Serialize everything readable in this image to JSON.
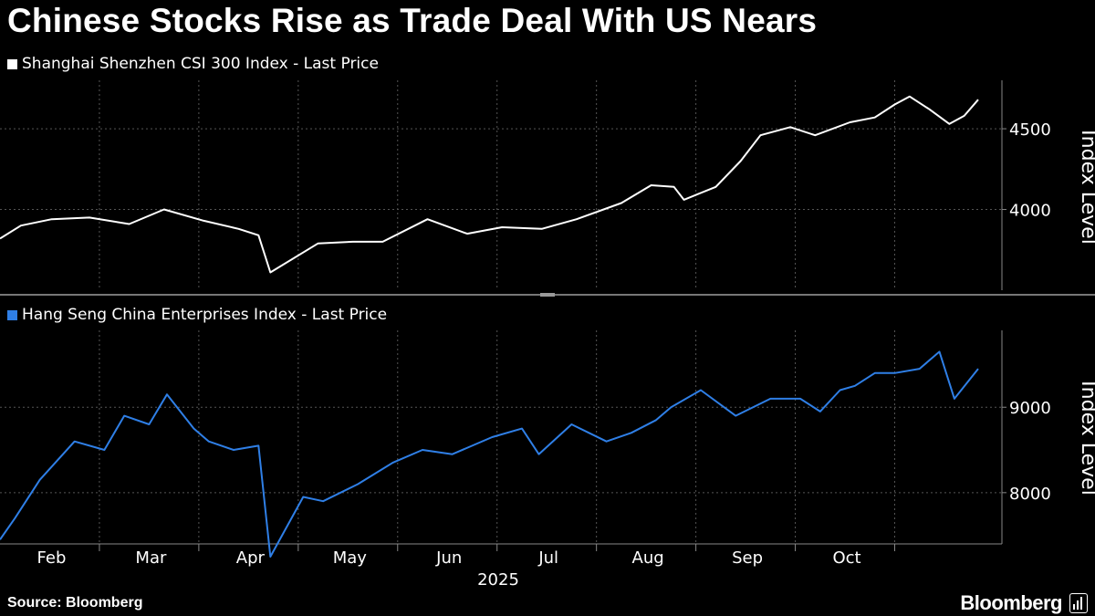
{
  "title": "Chinese Stocks Rise as Trade Deal With US Nears",
  "source": "Source: Bloomberg",
  "brand": "Bloomberg",
  "colors": {
    "background": "#000000",
    "series_top": "#ffffff",
    "series_bottom": "#2f7fe6",
    "grid": "#555555"
  },
  "chart_data": [
    {
      "type": "line",
      "legend": "Shanghai Shenzhen CSI 300 Index - Last Price",
      "ylabel": "Index Level",
      "ylim": [
        3500,
        4800
      ],
      "yticks": [
        4000,
        4500
      ],
      "ytick_labels": [
        "4000",
        "4500"
      ],
      "x_range_months": [
        0.0,
        9.84
      ],
      "x": [
        0.0,
        0.21,
        0.52,
        0.9,
        1.3,
        1.65,
        2.05,
        2.4,
        2.6,
        2.72,
        3.2,
        3.55,
        3.85,
        4.3,
        4.7,
        5.05,
        5.45,
        5.8,
        6.25,
        6.55,
        6.78,
        6.88,
        7.2,
        7.45,
        7.65,
        7.95,
        8.2,
        8.55,
        8.8,
        9.0,
        9.15,
        9.35,
        9.55,
        9.7,
        9.84
      ],
      "values": [
        3820,
        3900,
        3940,
        3950,
        3910,
        4000,
        3930,
        3880,
        3840,
        3610,
        3790,
        3800,
        3800,
        3940,
        3850,
        3890,
        3880,
        3940,
        4040,
        4150,
        4140,
        4060,
        4140,
        4300,
        4460,
        4510,
        4460,
        4540,
        4570,
        4650,
        4700,
        4620,
        4530,
        4580,
        4680
      ]
    },
    {
      "type": "line",
      "legend": "Hang Seng China Enterprises Index - Last Price",
      "ylabel": "Index Level",
      "ylim": [
        7400,
        9900
      ],
      "yticks": [
        8000,
        9000
      ],
      "ytick_labels": [
        "8000",
        "9000"
      ],
      "x_range_months": [
        0.0,
        9.84
      ],
      "x": [
        0.0,
        0.15,
        0.4,
        0.75,
        1.05,
        1.25,
        1.5,
        1.68,
        1.95,
        2.1,
        2.35,
        2.6,
        2.72,
        3.05,
        3.25,
        3.6,
        3.95,
        4.25,
        4.55,
        4.95,
        5.25,
        5.42,
        5.75,
        6.1,
        6.35,
        6.6,
        6.75,
        7.05,
        7.4,
        7.75,
        8.05,
        8.25,
        8.45,
        8.6,
        8.8,
        9.0,
        9.25,
        9.45,
        9.6,
        9.84
      ],
      "values": [
        7450,
        7700,
        8150,
        8600,
        8500,
        8900,
        8800,
        9150,
        8750,
        8600,
        8500,
        8550,
        7250,
        7950,
        7900,
        8100,
        8350,
        8500,
        8450,
        8650,
        8750,
        8450,
        8800,
        8600,
        8700,
        8850,
        9000,
        9200,
        8900,
        9100,
        9100,
        8950,
        9200,
        9250,
        9400,
        9400,
        9450,
        9650,
        9100,
        9450
      ]
    }
  ],
  "x_axis": {
    "month_labels": [
      "Feb",
      "Mar",
      "Apr",
      "May",
      "Jun",
      "Jul",
      "Aug",
      "Sep",
      "Oct"
    ],
    "month_label_positions": [
      0.5,
      1.5,
      2.5,
      3.5,
      4.5,
      5.5,
      6.5,
      7.5,
      8.5
    ],
    "gridline_positions": [
      1.0,
      2.0,
      3.0,
      4.0,
      5.0,
      6.0,
      7.0,
      8.0,
      9.0
    ],
    "year_label": "2025",
    "year_label_position": 4.5
  }
}
